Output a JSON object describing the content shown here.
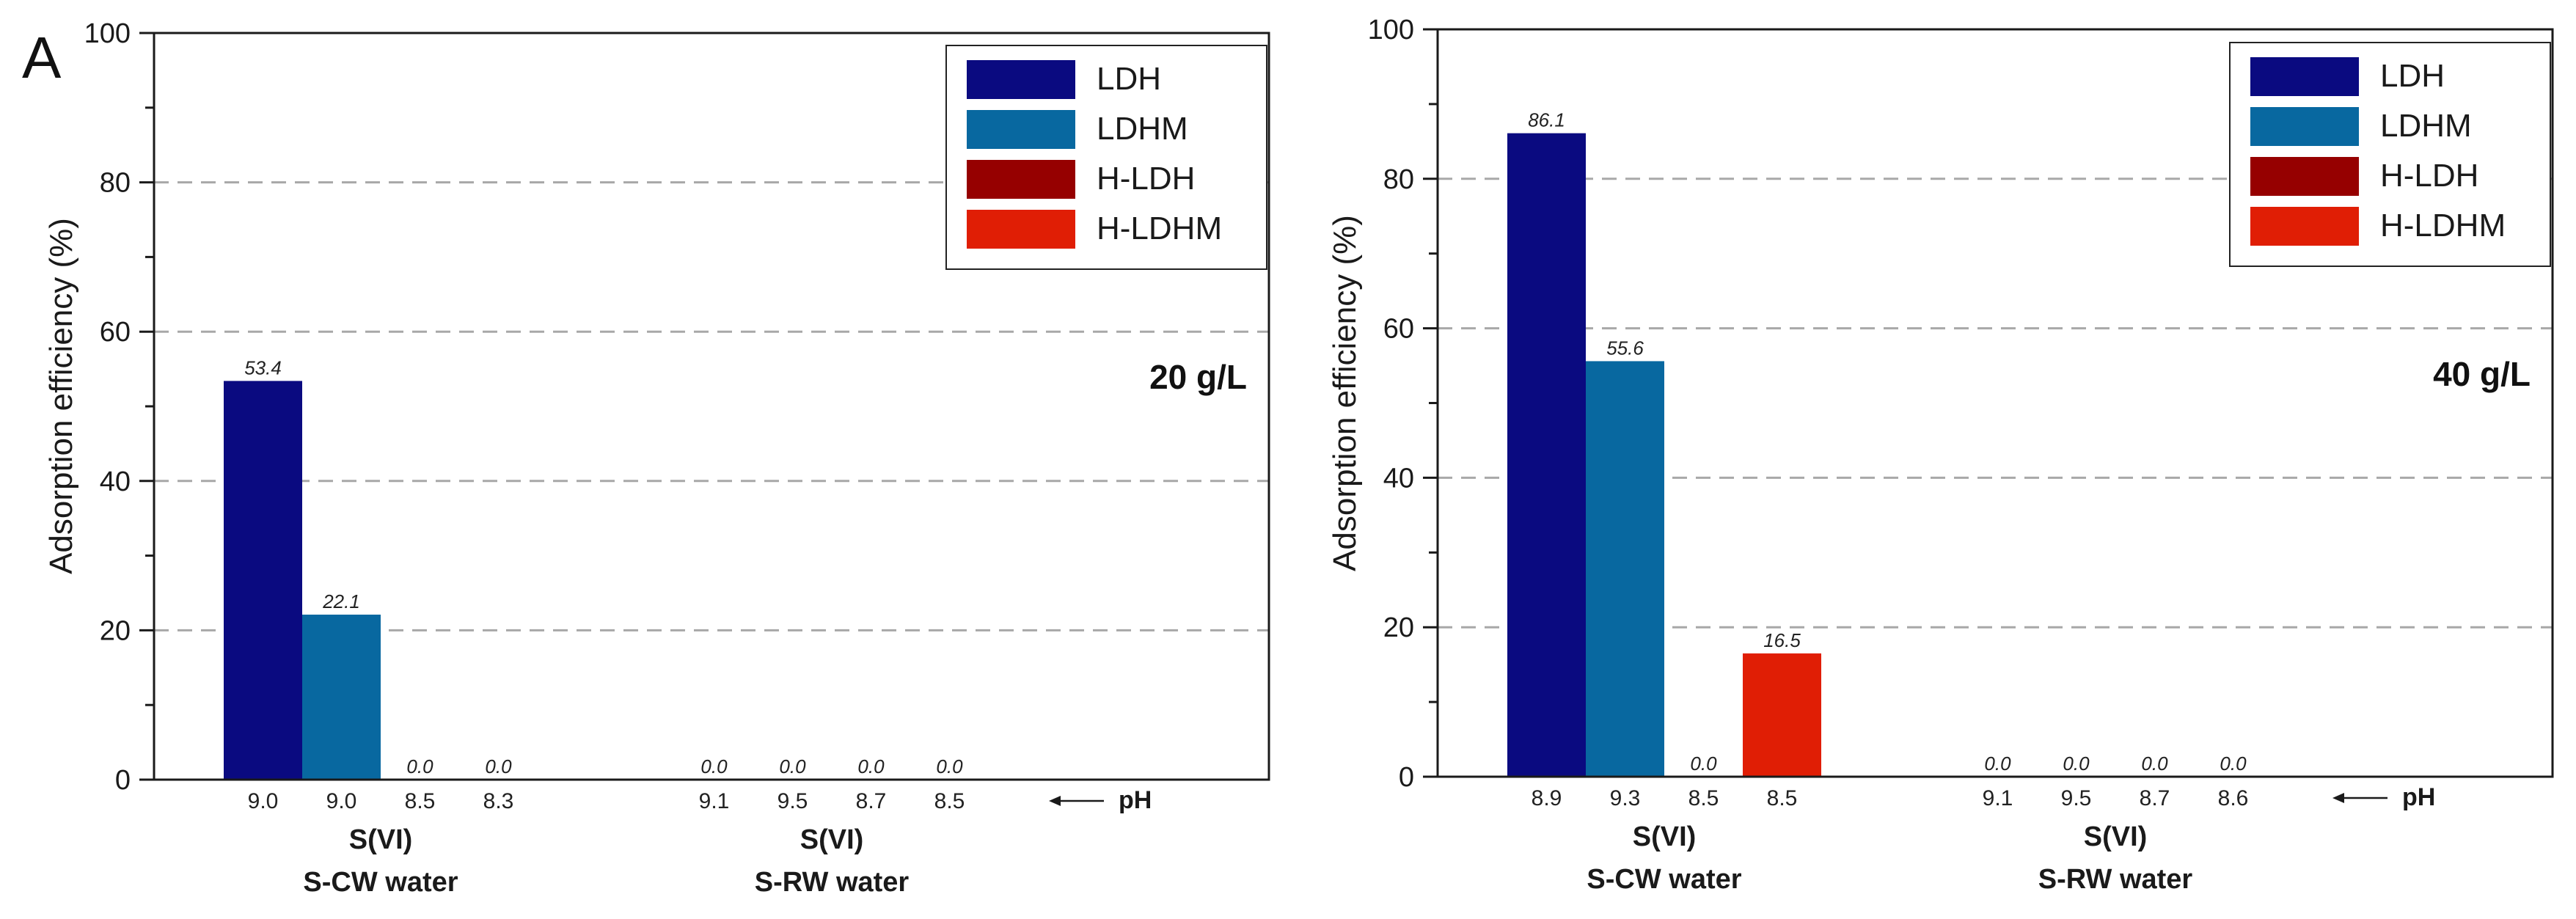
{
  "panel_label": "A",
  "ph_axis_label": "pH",
  "chart_data": [
    {
      "type": "bar",
      "annotation": "20 g/L",
      "ylabel": "Adsorption efficiency (%)",
      "ylim": [
        0,
        100
      ],
      "yticks": [
        0,
        20,
        40,
        60,
        80,
        100
      ],
      "grid": "horizontal dashed at 20, 40, 60, 80",
      "legend_position": "top-right",
      "groups": [
        {
          "label_line1": "S(VI)",
          "label_line2": "S-CW water",
          "ph": [
            "9.0",
            "9.0",
            "8.5",
            "8.3"
          ]
        },
        {
          "label_line1": "S(VI)",
          "label_line2": "S-RW water",
          "ph": [
            "9.1",
            "9.5",
            "8.7",
            "8.5"
          ]
        }
      ],
      "series": [
        {
          "name": "LDH",
          "color": "#0a0a80",
          "values": [
            53.4,
            0.0
          ],
          "labels": [
            "53.4",
            "0.0"
          ]
        },
        {
          "name": "LDHM",
          "color": "#0868a0",
          "values": [
            22.1,
            0.0
          ],
          "labels": [
            "22.1",
            "0.0"
          ]
        },
        {
          "name": "H-LDH",
          "color": "#960000",
          "values": [
            0.0,
            0.0
          ],
          "labels": [
            "0.0",
            "0.0"
          ]
        },
        {
          "name": "H-LDHM",
          "color": "#e01e05",
          "values": [
            0.0,
            0.0
          ],
          "labels": [
            "0.0",
            "0.0"
          ]
        }
      ]
    },
    {
      "type": "bar",
      "annotation": "40 g/L",
      "ylabel": "Adsorption efficiency (%)",
      "ylim": [
        0,
        100
      ],
      "yticks": [
        0,
        20,
        40,
        60,
        80,
        100
      ],
      "grid": "horizontal dashed at 20, 40, 60, 80, 100",
      "legend_position": "top-right",
      "groups": [
        {
          "label_line1": "S(VI)",
          "label_line2": "S-CW water",
          "ph": [
            "8.9",
            "9.3",
            "8.5",
            "8.5"
          ]
        },
        {
          "label_line1": "S(VI)",
          "label_line2": "S-RW water",
          "ph": [
            "9.1",
            "9.5",
            "8.7",
            "8.6"
          ]
        }
      ],
      "series": [
        {
          "name": "LDH",
          "color": "#0a0a80",
          "values": [
            86.1,
            0.0
          ],
          "labels": [
            "86.1",
            "0.0"
          ]
        },
        {
          "name": "LDHM",
          "color": "#0868a0",
          "values": [
            55.6,
            0.0
          ],
          "labels": [
            "55.6",
            "0.0"
          ]
        },
        {
          "name": "H-LDH",
          "color": "#960000",
          "values": [
            0.0,
            0.0
          ],
          "labels": [
            "0.0",
            "0.0"
          ]
        },
        {
          "name": "H-LDHM",
          "color": "#e01e05",
          "values": [
            16.5,
            0.0
          ],
          "labels": [
            "16.5",
            "0.0"
          ]
        }
      ]
    }
  ]
}
